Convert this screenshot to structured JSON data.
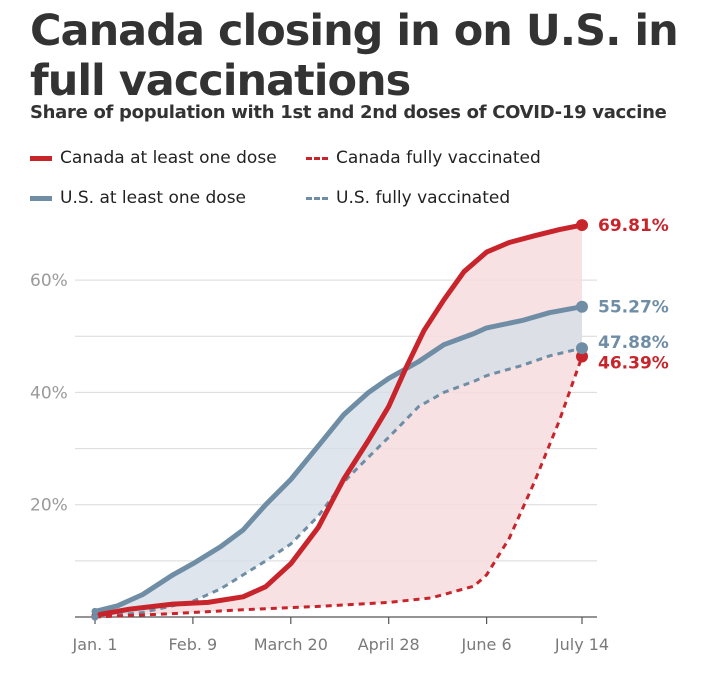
{
  "title": "Canada closing in on U.S. in full vaccinations",
  "subtitle": "Share of population with 1st and 2nd doses of COVID-19 vaccine",
  "legend": [
    {
      "label": "Canada at least one dose",
      "color": "#c8242b",
      "style": "solid"
    },
    {
      "label": "Canada fully vaccinated",
      "color": "#c8242b",
      "style": "dashed"
    },
    {
      "label": "U.S. at least one dose",
      "color": "#6f8ea6",
      "style": "solid"
    },
    {
      "label": "U.S. fully vaccinated",
      "color": "#6f8ea6",
      "style": "dashed"
    }
  ],
  "colors": {
    "canada": "#c8242b",
    "us": "#6f8ea6",
    "canada_fill": "#f7dcdd",
    "us_fill": "#d6dfe7",
    "grid": "#d9d9d9",
    "axis_text": "#9a9a9a",
    "x_text": "#7a7a7a"
  },
  "chart_data": {
    "type": "line",
    "title": "Canada closing in on U.S. in full vaccinations",
    "subtitle": "Share of population with 1st and 2nd doses of COVID-19 vaccine",
    "xlabel": "",
    "ylabel": "",
    "x_ticks": [
      "Jan. 1",
      "Feb. 9",
      "March 20",
      "April 28",
      "June 6",
      "July 14"
    ],
    "y_ticks": [
      "20%",
      "40%",
      "60%"
    ],
    "ylim": [
      0,
      70
    ],
    "xlim": [
      "2021-01-01",
      "2021-07-14"
    ],
    "grid": true,
    "legend_position": "top",
    "series": [
      {
        "name": "Canada at least one dose",
        "style": "solid",
        "x": [
          "2021-01-01",
          "2021-01-15",
          "2021-02-01",
          "2021-02-15",
          "2021-03-01",
          "2021-03-10",
          "2021-03-20",
          "2021-03-31",
          "2021-04-10",
          "2021-04-20",
          "2021-04-28",
          "2021-05-05",
          "2021-05-12",
          "2021-05-20",
          "2021-05-28",
          "2021-06-06",
          "2021-06-15",
          "2021-06-25",
          "2021-07-05",
          "2021-07-14"
        ],
        "values": [
          0.3,
          1.4,
          2.3,
          2.6,
          3.6,
          5.4,
          9.5,
          16.0,
          24.5,
          31.5,
          37.5,
          44.5,
          51.0,
          56.5,
          61.5,
          65.0,
          66.7,
          67.9,
          69.0,
          69.81
        ]
      },
      {
        "name": "Canada fully vaccinated",
        "style": "dashed",
        "x": [
          "2021-01-01",
          "2021-02-01",
          "2021-03-01",
          "2021-04-01",
          "2021-04-28",
          "2021-05-15",
          "2021-06-01",
          "2021-06-06",
          "2021-06-15",
          "2021-06-25",
          "2021-07-05",
          "2021-07-14"
        ],
        "values": [
          0,
          0.6,
          1.3,
          1.9,
          2.6,
          3.4,
          5.5,
          7.5,
          14.0,
          24.0,
          35.0,
          46.39
        ]
      },
      {
        "name": "U.S. at least one dose",
        "style": "solid",
        "x": [
          "2021-01-01",
          "2021-01-10",
          "2021-01-20",
          "2021-02-01",
          "2021-02-09",
          "2021-02-20",
          "2021-03-01",
          "2021-03-10",
          "2021-03-20",
          "2021-03-31",
          "2021-04-10",
          "2021-04-20",
          "2021-04-28",
          "2021-05-10",
          "2021-05-20",
          "2021-06-01",
          "2021-06-06",
          "2021-06-20",
          "2021-07-01",
          "2021-07-14"
        ],
        "values": [
          1.0,
          2.0,
          4.0,
          7.5,
          9.5,
          12.5,
          15.5,
          20.0,
          24.5,
          30.5,
          36.0,
          40.0,
          42.5,
          45.5,
          48.5,
          50.5,
          51.5,
          52.8,
          54.2,
          55.27
        ]
      },
      {
        "name": "U.S. fully vaccinated",
        "style": "dashed",
        "x": [
          "2021-01-01",
          "2021-01-20",
          "2021-02-09",
          "2021-02-20",
          "2021-03-01",
          "2021-03-10",
          "2021-03-20",
          "2021-03-31",
          "2021-04-10",
          "2021-04-20",
          "2021-04-28",
          "2021-05-10",
          "2021-05-20",
          "2021-06-01",
          "2021-06-06",
          "2021-06-20",
          "2021-07-01",
          "2021-07-14"
        ],
        "values": [
          0,
          0.8,
          2.8,
          5.0,
          7.5,
          10.0,
          13.0,
          18.0,
          24.0,
          28.5,
          32.0,
          37.5,
          40.0,
          42.0,
          43.0,
          44.8,
          46.5,
          47.88
        ]
      }
    ],
    "end_labels": [
      {
        "series": "Canada at least one dose",
        "text": "69.81%",
        "color": "#c8242b"
      },
      {
        "series": "U.S. at least one dose",
        "text": "55.27%",
        "color": "#6f8ea6"
      },
      {
        "series": "U.S. fully vaccinated",
        "text": "47.88%",
        "color": "#6f8ea6"
      },
      {
        "series": "Canada fully vaccinated",
        "text": "46.39%",
        "color": "#c8242b"
      }
    ]
  }
}
